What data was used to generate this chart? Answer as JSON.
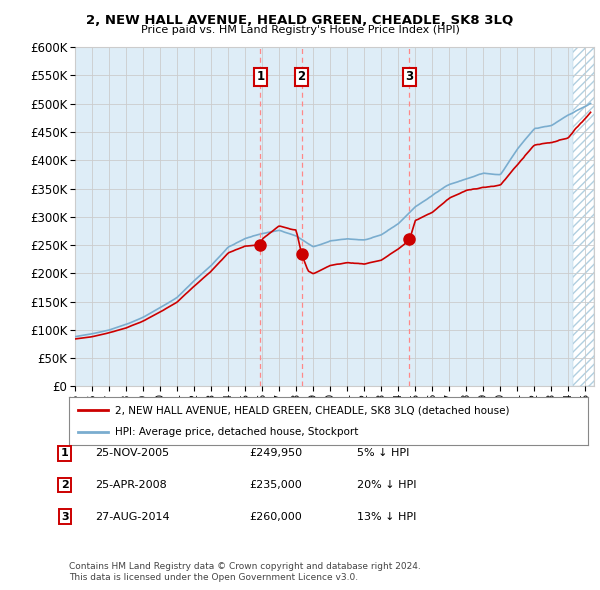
{
  "title": "2, NEW HALL AVENUE, HEALD GREEN, CHEADLE, SK8 3LQ",
  "subtitle": "Price paid vs. HM Land Registry's House Price Index (HPI)",
  "legend_label_red": "2, NEW HALL AVENUE, HEALD GREEN, CHEADLE, SK8 3LQ (detached house)",
  "legend_label_blue": "HPI: Average price, detached house, Stockport",
  "footnote1": "Contains HM Land Registry data © Crown copyright and database right 2024.",
  "footnote2": "This data is licensed under the Open Government Licence v3.0.",
  "sales": [
    {
      "num": 1,
      "date": "25-NOV-2005",
      "price": 249950,
      "hpi_diff": "5% ↓ HPI",
      "x_year": 2005.9
    },
    {
      "num": 2,
      "date": "25-APR-2008",
      "price": 235000,
      "hpi_diff": "20% ↓ HPI",
      "x_year": 2008.32
    },
    {
      "num": 3,
      "date": "27-AUG-2014",
      "price": 260000,
      "hpi_diff": "13% ↓ HPI",
      "x_year": 2014.65
    }
  ],
  "ylim": [
    0,
    600000
  ],
  "xmin": 1995.0,
  "xmax": 2025.5,
  "red_color": "#cc0000",
  "blue_color": "#7aadcf",
  "fill_color": "#deedf7",
  "grid_color": "#cccccc",
  "bg_color": "#ffffff",
  "vline_color": "#ff8888",
  "hatch_color": "#b0cfe0"
}
